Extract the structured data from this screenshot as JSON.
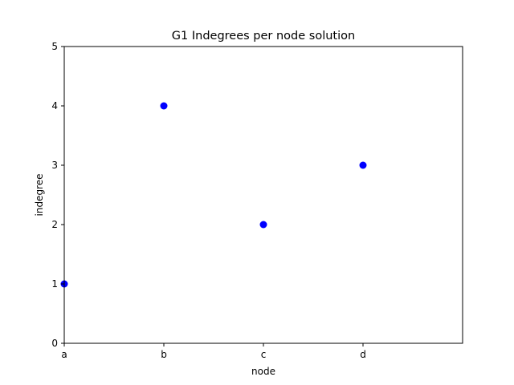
{
  "chart_data": {
    "type": "scatter",
    "title": "G1 Indegrees per node solution",
    "xlabel": "node",
    "ylabel": "indegree",
    "x": [
      "a",
      "b",
      "c",
      "d"
    ],
    "y": [
      1,
      4,
      2,
      3
    ],
    "xlim": [
      0,
      4
    ],
    "ylim": [
      0,
      5
    ],
    "yticks": [
      0,
      1,
      2,
      3,
      4,
      5
    ],
    "marker_color": "#0000ff",
    "grid": false,
    "legend": "none"
  }
}
